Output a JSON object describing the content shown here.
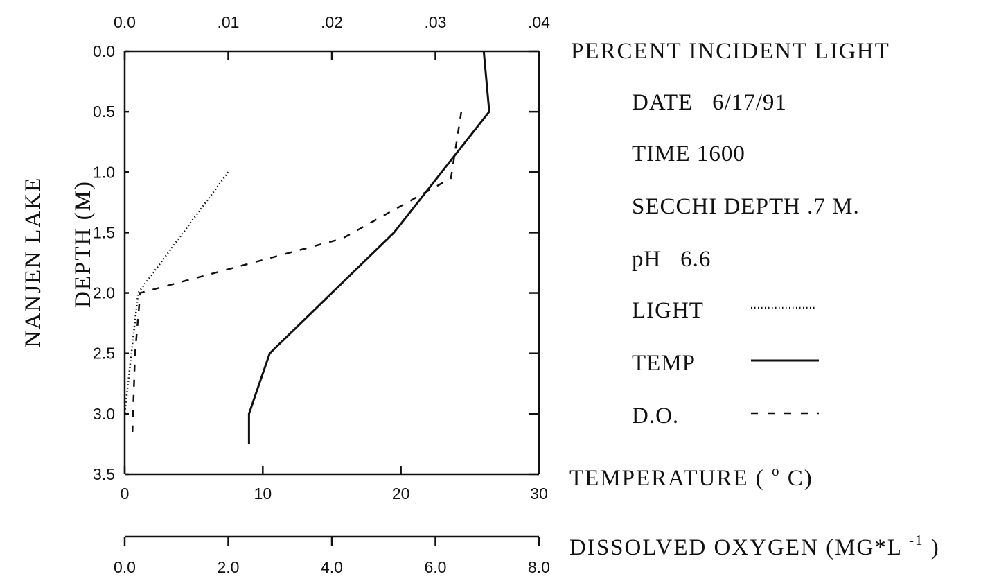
{
  "chart_data": {
    "type": "line",
    "y_axis": {
      "label_line1": "NANJEN LAKE",
      "label_line2": "DEPTH (M)",
      "min": 0.0,
      "max": 3.5,
      "inverted": true,
      "ticks": [
        0.0,
        0.5,
        1.0,
        1.5,
        2.0,
        2.5,
        3.0,
        3.5
      ],
      "tick_labels": [
        "0.0",
        "0.5",
        "1.0",
        "1.5",
        "2.0",
        "2.5",
        "3.0",
        "3.5"
      ]
    },
    "top_axis": {
      "label": "PERCENT INCIDENT LIGHT",
      "min": 0.0,
      "max": 0.04,
      "ticks": [
        0.0,
        0.01,
        0.02,
        0.03,
        0.04
      ],
      "tick_labels": [
        "0.0",
        ".01",
        ".02",
        ".03",
        ".04"
      ]
    },
    "temp_axis": {
      "label": "TEMPERATURE (",
      "label_degree": "o",
      "label_unit": "C)",
      "min": 0,
      "max": 30,
      "ticks": [
        0,
        10,
        20,
        30
      ],
      "tick_labels": [
        "0",
        "10",
        "20",
        "30"
      ]
    },
    "do_axis": {
      "label": "DISSOLVED OXYGEN (MG*L",
      "label_sup": "-1",
      "label_end": ")",
      "min": 0.0,
      "max": 8.0,
      "ticks": [
        0.0,
        2.0,
        4.0,
        6.0,
        8.0
      ],
      "tick_labels": [
        "0.0",
        "2.0",
        "4.0",
        "6.0",
        "8.0"
      ]
    },
    "series": [
      {
        "name": "LIGHT",
        "axis": "top_axis",
        "style": "dotted",
        "points": [
          [
            0.01,
            1.0
          ],
          [
            0.0013,
            2.0
          ],
          [
            0.0,
            3.0
          ]
        ]
      },
      {
        "name": "TEMP",
        "axis": "temp_axis",
        "style": "solid",
        "points": [
          [
            26,
            0.0
          ],
          [
            26.4,
            0.5
          ],
          [
            19.5,
            1.5
          ],
          [
            10.5,
            2.5
          ],
          [
            9,
            3.0
          ],
          [
            9,
            3.25
          ]
        ]
      },
      {
        "name": "D.O.",
        "axis": "do_axis",
        "style": "dashed",
        "points": [
          [
            6.5,
            0.5
          ],
          [
            6.3,
            1.05
          ],
          [
            4.2,
            1.55
          ],
          [
            0.3,
            2.0
          ],
          [
            0.2,
            2.5
          ],
          [
            0.15,
            3.15
          ]
        ]
      }
    ]
  },
  "info": {
    "date": "DATE   6/17/91",
    "time": "TIME 1600",
    "secchi": "SECCHI DEPTH .7 M.",
    "ph": "pH   6.6"
  },
  "legend": [
    {
      "label": "LIGHT",
      "style": "dotted"
    },
    {
      "label": "TEMP",
      "style": "solid"
    },
    {
      "label": "D.O.",
      "style": "dashed"
    }
  ],
  "colors": {
    "ink": "#111111",
    "background": "#ffffff"
  }
}
